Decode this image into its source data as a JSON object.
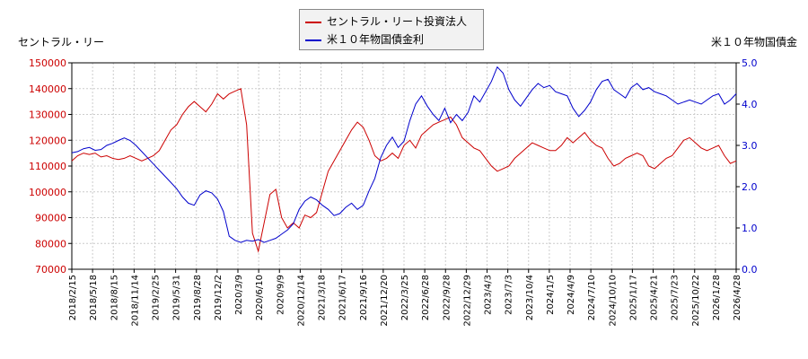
{
  "chart_data": {
    "type": "line",
    "left_axis_title": "セントラル・リー",
    "right_axis_title": "米１０年物国債金",
    "left_axis": {
      "ylim": [
        70000,
        150000
      ],
      "ticks": [
        "150000",
        "140000",
        "130000",
        "120000",
        "110000",
        "100000",
        "90000",
        "80000",
        "70000"
      ]
    },
    "right_axis": {
      "ylim": [
        0.0,
        5.0
      ],
      "ticks": [
        "5.0",
        "4.0",
        "3.0",
        "2.0",
        "1.0",
        "0.0"
      ]
    },
    "x_ticks": [
      "2018/2/15",
      "2018/5/18",
      "2018/8/15",
      "2018/11/14",
      "2019/2/25",
      "2019/5/31",
      "2019/8/28",
      "2019/12/2",
      "2020/3/9",
      "2020/6/10",
      "2020/9/9",
      "2020/12/14",
      "2021/3/18",
      "2021/6/17",
      "2021/9/16",
      "2021/12/20",
      "2022/3/25",
      "2022/6/28",
      "2022/9/28",
      "2022/12/29",
      "2023/4/3",
      "2023/7/3",
      "2023/10/4",
      "2024/1/5",
      "2024/4/9",
      "2024/7/10",
      "2024/10/10",
      "2025/1/17",
      "2025/4/21",
      "2025/7/23",
      "2025/10/22",
      "2026/1/28",
      "2026/4/28"
    ],
    "colors": {
      "reit": "#cc0000",
      "bond": "#0000cc"
    },
    "series": [
      {
        "name": "セントラル・リート投資法人",
        "axis": "left",
        "values": [
          112000,
          114000,
          115000,
          114500,
          115000,
          113500,
          114000,
          113000,
          112500,
          113000,
          114000,
          113000,
          112000,
          113000,
          114000,
          116000,
          120000,
          124000,
          126000,
          130000,
          133000,
          135000,
          133000,
          131000,
          134000,
          138000,
          136000,
          138000,
          139000,
          140000,
          126000,
          84000,
          77000,
          88000,
          99000,
          101000,
          90000,
          86000,
          88000,
          86000,
          91000,
          90000,
          92000,
          100000,
          108000,
          112000,
          116000,
          120000,
          124000,
          127000,
          125000,
          120000,
          114000,
          112000,
          113000,
          115000,
          113000,
          118000,
          120000,
          117000,
          122000,
          124000,
          126000,
          127000,
          128000,
          129000,
          126000,
          121000,
          119000,
          117000,
          116000,
          113000,
          110000,
          108000,
          109000,
          110000,
          113000,
          115000,
          117000,
          119000,
          118000,
          117000,
          116000,
          116000,
          118000,
          121000,
          119000,
          121000,
          123000,
          120000,
          118000,
          117000,
          113000,
          110000,
          111000,
          113000,
          114000,
          115000,
          114000,
          110000,
          109000,
          111000,
          113000,
          114000,
          117000,
          120000,
          121000,
          119000,
          117000,
          116000,
          117000,
          118000,
          114000,
          111000,
          112000
        ]
      },
      {
        "name": "米１０年物国債金利",
        "axis": "right",
        "values": [
          2.82,
          2.85,
          2.92,
          2.95,
          2.88,
          2.9,
          3.0,
          3.05,
          3.12,
          3.18,
          3.12,
          3.0,
          2.85,
          2.7,
          2.55,
          2.4,
          2.25,
          2.1,
          1.95,
          1.75,
          1.6,
          1.55,
          1.8,
          1.9,
          1.85,
          1.7,
          1.4,
          0.8,
          0.7,
          0.65,
          0.7,
          0.68,
          0.72,
          0.65,
          0.7,
          0.75,
          0.85,
          0.95,
          1.1,
          1.45,
          1.65,
          1.75,
          1.68,
          1.55,
          1.45,
          1.3,
          1.35,
          1.5,
          1.6,
          1.45,
          1.55,
          1.9,
          2.2,
          2.7,
          3.0,
          3.2,
          2.95,
          3.1,
          3.6,
          4.0,
          4.2,
          3.95,
          3.75,
          3.6,
          3.9,
          3.55,
          3.75,
          3.6,
          3.8,
          4.2,
          4.05,
          4.3,
          4.55,
          4.9,
          4.75,
          4.35,
          4.1,
          3.95,
          4.15,
          4.35,
          4.5,
          4.4,
          4.45,
          4.3,
          4.25,
          4.2,
          3.9,
          3.7,
          3.85,
          4.05,
          4.35,
          4.55,
          4.6,
          4.35,
          4.25,
          4.15,
          4.4,
          4.5,
          4.35,
          4.4,
          4.3,
          4.25,
          4.2,
          4.1,
          4.0,
          4.05,
          4.1,
          4.05,
          4.0,
          4.1,
          4.2,
          4.25,
          4.0,
          4.1,
          4.25
        ]
      }
    ]
  }
}
